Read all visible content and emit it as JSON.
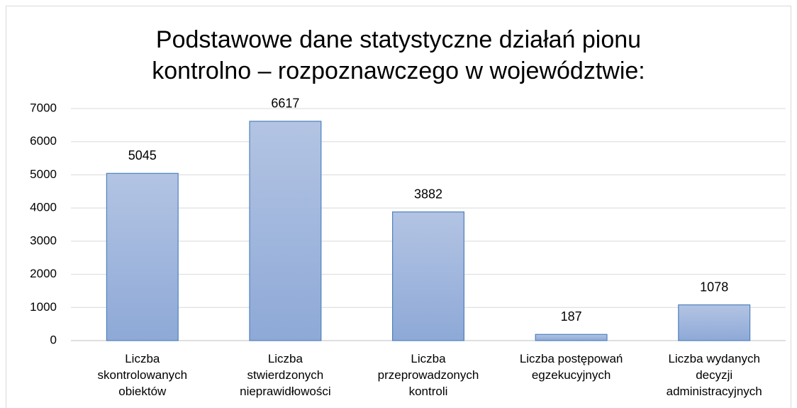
{
  "chart_data": {
    "type": "bar",
    "title": "Podstawowe dane statystyczne działań pionu\nkontrolno – rozpoznawczego w województwie:",
    "categories": [
      "Liczba\nskontrolowanych\nobiektów",
      "Liczba\nstwierdzonych\nnieprawidłowości",
      "Liczba\nprzeprowadzonych\nkontroli",
      "Liczba postępowań\negzekucyjnych",
      "Liczba wydanych\ndecyzji\nadministracyjnych"
    ],
    "values": [
      5045,
      6617,
      3882,
      187,
      1078
    ],
    "color": "#4f81bd",
    "ylim": [
      0,
      7000
    ],
    "yticks": [
      0,
      1000,
      2000,
      3000,
      4000,
      5000,
      6000,
      7000
    ],
    "grid": true
  }
}
